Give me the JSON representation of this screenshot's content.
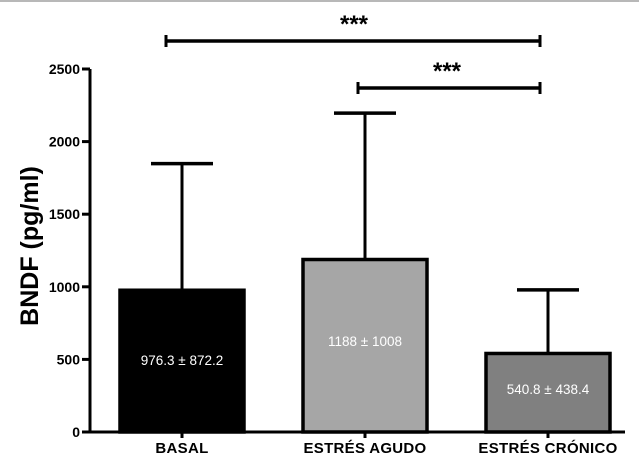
{
  "chart_data": {
    "type": "bar",
    "categories": [
      "BASAL",
      "ESTRÉS AGUDO",
      "ESTRÉS CRÓNICO"
    ],
    "values": [
      976.3,
      1188,
      540.8
    ],
    "errors": [
      872.2,
      1008,
      438.4
    ],
    "bar_labels": [
      "976.3 ± 872.2",
      "1188 ± 1008",
      "540.8 ± 438.4"
    ],
    "bar_colors": [
      "#000000",
      "#a6a6a6",
      "#808080"
    ],
    "title": "",
    "xlabel": "",
    "ylabel": "BNDF (pg/ml)",
    "ylim": [
      0,
      2500
    ],
    "yticks": [
      0,
      500,
      1000,
      1500,
      2000,
      2500
    ],
    "grid": false,
    "significance": [
      {
        "from": 0,
        "to": 2,
        "label": "***"
      },
      {
        "from": 1,
        "to": 2,
        "label": "***"
      }
    ]
  }
}
